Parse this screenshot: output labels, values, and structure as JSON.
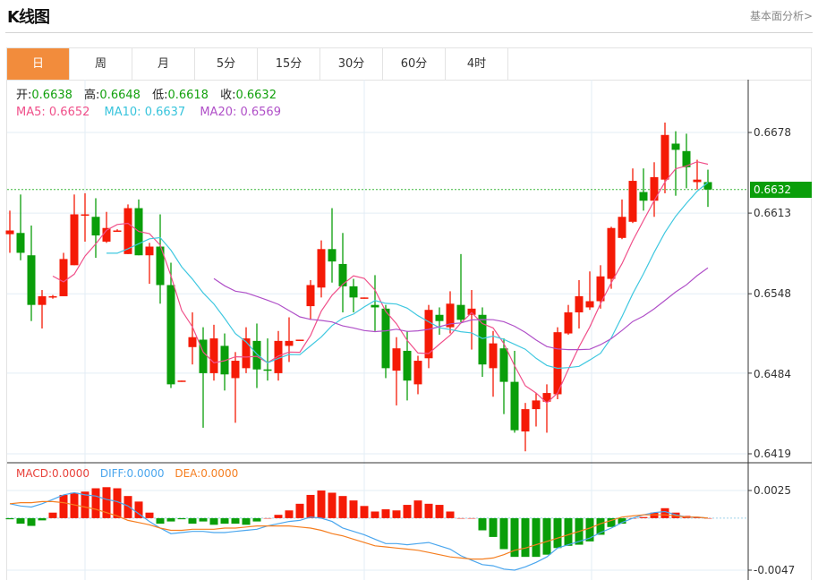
{
  "header": {
    "title": "K线图",
    "fundamental_link": "基本面分析>"
  },
  "tabs": [
    {
      "label": "日",
      "active": true
    },
    {
      "label": "周",
      "active": false
    },
    {
      "label": "月",
      "active": false
    },
    {
      "label": "5分",
      "active": false
    },
    {
      "label": "15分",
      "active": false
    },
    {
      "label": "30分",
      "active": false
    },
    {
      "label": "60分",
      "active": false
    },
    {
      "label": "4时",
      "active": false
    }
  ],
  "ohlc_info": {
    "open_label": "开:",
    "open": "0.6638",
    "high_label": "高:",
    "high": "0.6648",
    "low_label": "低:",
    "low": "0.6618",
    "close_label": "收:",
    "close": "0.6632"
  },
  "ma_info": {
    "ma5": "MA5: 0.6652",
    "ma10": "MA10: 0.6637",
    "ma20": "MA20: 0.6569"
  },
  "macd_info": {
    "macd": "MACD:0.0000",
    "diff": "DIFF:0.0000",
    "dea": "DEA:0.0000"
  },
  "colors": {
    "up": "#f51a06",
    "down": "#0a9e0a",
    "ma5": "#f0508a",
    "ma10": "#40c8e0",
    "ma20": "#b050c8",
    "diff": "#4aa6ee",
    "dea": "#f57e20",
    "accent_tab": "#f28c3c"
  },
  "chart_data": [
    {
      "type": "candlestick",
      "price_axis_ticks": [
        "0.6678",
        "0.6613",
        "0.6548",
        "0.6484",
        "0.6419"
      ],
      "ylim": [
        0.6419,
        0.6678
      ],
      "current_price": "0.6632",
      "grid": true,
      "ohlc": [
        [
          0.6596,
          0.6615,
          0.6581,
          0.6599
        ],
        [
          0.6597,
          0.6628,
          0.6575,
          0.6581
        ],
        [
          0.6579,
          0.6603,
          0.6526,
          0.6539
        ],
        [
          0.6539,
          0.6551,
          0.652,
          0.6546
        ],
        [
          0.6545,
          0.6547,
          0.6544,
          0.6546
        ],
        [
          0.6546,
          0.6581,
          0.6546,
          0.6576
        ],
        [
          0.6571,
          0.6628,
          0.6571,
          0.6612
        ],
        [
          0.6611,
          0.6629,
          0.659,
          0.6612
        ],
        [
          0.661,
          0.6625,
          0.6577,
          0.6595
        ],
        [
          0.659,
          0.6614,
          0.6589,
          0.6601
        ],
        [
          0.6598,
          0.66,
          0.6598,
          0.6599
        ],
        [
          0.658,
          0.662,
          0.658,
          0.6617
        ],
        [
          0.6617,
          0.6624,
          0.6579,
          0.6579
        ],
        [
          0.6579,
          0.6589,
          0.6556,
          0.6586
        ],
        [
          0.6586,
          0.6612,
          0.654,
          0.6555
        ],
        [
          0.6555,
          0.6573,
          0.6472,
          0.6475
        ],
        [
          0.6477,
          0.6478,
          0.6477,
          0.6478
        ],
        [
          0.6505,
          0.6533,
          0.6491,
          0.6513
        ],
        [
          0.6511,
          0.6521,
          0.644,
          0.6484
        ],
        [
          0.6484,
          0.6523,
          0.6478,
          0.6512
        ],
        [
          0.6506,
          0.6516,
          0.647,
          0.6483
        ],
        [
          0.648,
          0.6501,
          0.6444,
          0.6494
        ],
        [
          0.6488,
          0.6521,
          0.6484,
          0.6512
        ],
        [
          0.651,
          0.6524,
          0.6472,
          0.6487
        ],
        [
          0.6487,
          0.6512,
          0.6478,
          0.6486
        ],
        [
          0.6484,
          0.6518,
          0.6478,
          0.651
        ],
        [
          0.6506,
          0.6529,
          0.6493,
          0.651
        ],
        [
          0.651,
          0.6511,
          0.651,
          0.6511
        ],
        [
          0.6538,
          0.6559,
          0.6527,
          0.6555
        ],
        [
          0.6553,
          0.6591,
          0.6545,
          0.6584
        ],
        [
          0.6584,
          0.6617,
          0.6557,
          0.6574
        ],
        [
          0.6572,
          0.6597,
          0.6533,
          0.6554
        ],
        [
          0.6554,
          0.656,
          0.6533,
          0.6545
        ],
        [
          0.6544,
          0.6545,
          0.6544,
          0.6545
        ],
        [
          0.6539,
          0.6563,
          0.6518,
          0.6537
        ],
        [
          0.6536,
          0.6539,
          0.648,
          0.6488
        ],
        [
          0.6486,
          0.6513,
          0.6458,
          0.6504
        ],
        [
          0.6502,
          0.6518,
          0.6462,
          0.6478
        ],
        [
          0.6475,
          0.6498,
          0.6467,
          0.6494
        ],
        [
          0.6496,
          0.6539,
          0.6488,
          0.6535
        ],
        [
          0.6531,
          0.6537,
          0.6515,
          0.6526
        ],
        [
          0.6521,
          0.655,
          0.6516,
          0.654
        ],
        [
          0.6539,
          0.658,
          0.6525,
          0.6527
        ],
        [
          0.6531,
          0.6551,
          0.6503,
          0.6536
        ],
        [
          0.6531,
          0.6537,
          0.6481,
          0.6491
        ],
        [
          0.6488,
          0.6518,
          0.6465,
          0.6508
        ],
        [
          0.6504,
          0.6512,
          0.6451,
          0.6477
        ],
        [
          0.6477,
          0.6502,
          0.6436,
          0.6438
        ],
        [
          0.6437,
          0.646,
          0.6421,
          0.6455
        ],
        [
          0.6455,
          0.6468,
          0.6441,
          0.6462
        ],
        [
          0.6461,
          0.6475,
          0.6436,
          0.6468
        ],
        [
          0.6467,
          0.6521,
          0.6463,
          0.6517
        ],
        [
          0.6516,
          0.6539,
          0.6515,
          0.6533
        ],
        [
          0.6533,
          0.6559,
          0.652,
          0.6546
        ],
        [
          0.6537,
          0.6566,
          0.6535,
          0.6542
        ],
        [
          0.6542,
          0.6571,
          0.6536,
          0.6562
        ],
        [
          0.656,
          0.6602,
          0.6552,
          0.6601
        ],
        [
          0.6593,
          0.6624,
          0.6592,
          0.661
        ],
        [
          0.6606,
          0.6649,
          0.6605,
          0.6639
        ],
        [
          0.663,
          0.6649,
          0.6615,
          0.6623
        ],
        [
          0.6623,
          0.6654,
          0.661,
          0.6642
        ],
        [
          0.664,
          0.6686,
          0.6629,
          0.6676
        ],
        [
          0.6669,
          0.6679,
          0.6627,
          0.6664
        ],
        [
          0.6663,
          0.6677,
          0.6633,
          0.665
        ],
        [
          0.6638,
          0.6656,
          0.6632,
          0.664
        ],
        [
          0.6638,
          0.6648,
          0.6618,
          0.6632
        ]
      ],
      "moving_averages": [
        5,
        10,
        20
      ]
    },
    {
      "type": "bar",
      "indicator": "MACD",
      "axis_ticks": [
        "0.0025",
        "-0.0047"
      ],
      "ylim": [
        -0.0047,
        0.0025
      ],
      "macd": [
        -0.0001,
        -0.0005,
        -0.0007,
        -0.0002,
        0.0005,
        0.0021,
        0.0023,
        0.0024,
        0.0027,
        0.0028,
        0.0027,
        0.002,
        0.0015,
        0.0005,
        -0.0005,
        -0.0003,
        -0.0001,
        -0.0005,
        -0.0003,
        -0.0006,
        -0.0005,
        -0.0005,
        -0.0006,
        -0.0003,
        0.0,
        0.0003,
        0.0007,
        0.0013,
        0.0021,
        0.0025,
        0.0023,
        0.002,
        0.0016,
        0.0011,
        0.0006,
        0.0008,
        0.0007,
        0.0012,
        0.0016,
        0.0013,
        0.0012,
        0.0006,
        0.0,
        0.0,
        -0.0011,
        -0.0017,
        -0.0028,
        -0.0035,
        -0.0035,
        -0.0035,
        -0.0033,
        -0.0027,
        -0.0025,
        -0.0024,
        -0.0021,
        -0.0015,
        -0.0008,
        -0.0005,
        0.0,
        0.0001,
        0.0005,
        0.0009,
        0.0005,
        0.0002,
        0.0001,
        0.0
      ],
      "diff": [
        0.0013,
        0.0011,
        0.001,
        0.0013,
        0.0017,
        0.0021,
        0.0023,
        0.0021,
        0.002,
        0.0017,
        0.0015,
        0.0011,
        0.0004,
        -0.0003,
        -0.0009,
        -0.0014,
        -0.0013,
        -0.0012,
        -0.0012,
        -0.0013,
        -0.0013,
        -0.0012,
        -0.0011,
        -0.001,
        -0.0007,
        -0.0005,
        -0.0003,
        -0.0002,
        0.0001,
        0.0,
        -0.0003,
        -0.0009,
        -0.0012,
        -0.0015,
        -0.0019,
        -0.0023,
        -0.0023,
        -0.0024,
        -0.0023,
        -0.0022,
        -0.0025,
        -0.0028,
        -0.0034,
        -0.0038,
        -0.0042,
        -0.0043,
        -0.0046,
        -0.0047,
        -0.0044,
        -0.004,
        -0.0035,
        -0.0027,
        -0.0024,
        -0.0021,
        -0.0018,
        -0.0013,
        -0.0009,
        -0.0004,
        0.0,
        0.0003,
        0.0005,
        0.0006,
        0.0003,
        0.0001,
        0.0001,
        0.0
      ],
      "dea": [
        0.0013,
        0.0014,
        0.0014,
        0.0015,
        0.0015,
        0.0014,
        0.0012,
        0.001,
        0.0008,
        0.0005,
        0.0002,
        -0.0002,
        -0.0004,
        -0.0006,
        -0.0009,
        -0.0011,
        -0.0011,
        -0.001,
        -0.001,
        -0.001,
        -0.0009,
        -0.0009,
        -0.0008,
        -0.0007,
        -0.0007,
        -0.0007,
        -0.0007,
        -0.0008,
        -0.0009,
        -0.0011,
        -0.0014,
        -0.0016,
        -0.0019,
        -0.0022,
        -0.0025,
        -0.0026,
        -0.0027,
        -0.0028,
        -0.0029,
        -0.0031,
        -0.0033,
        -0.0035,
        -0.0036,
        -0.0037,
        -0.0037,
        -0.0036,
        -0.0033,
        -0.0029,
        -0.0027,
        -0.0024,
        -0.0021,
        -0.0018,
        -0.0015,
        -0.0012,
        -0.0009,
        -0.0005,
        -0.0002,
        0.0001,
        0.0002,
        0.0003,
        0.0003,
        0.0003,
        0.0002,
        0.0001,
        0.0001,
        0.0
      ]
    }
  ]
}
